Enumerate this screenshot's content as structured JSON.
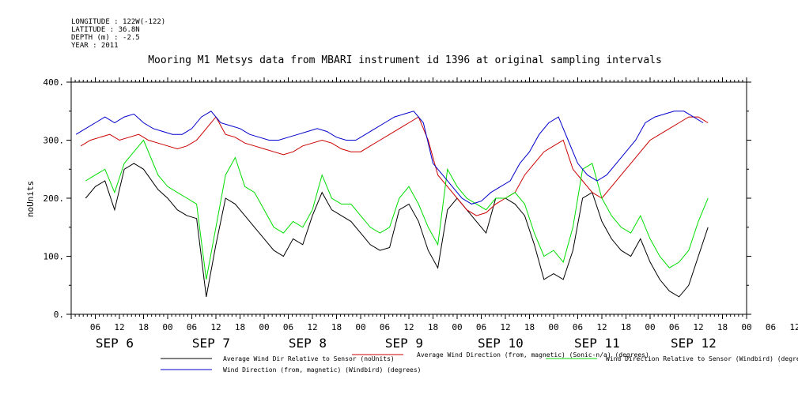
{
  "header": {
    "longitude": "LONGITUDE : 122W(-122)",
    "latitude": "LATITUDE : 36.8N",
    "depth": "DEPTH (m) : -2.5",
    "year": "YEAR : 2011"
  },
  "chart_data": {
    "type": "line",
    "title": "Mooring M1 Metsys data from MBARI instrument id 1396 at original sampling intervals",
    "ylabel": "noUnits",
    "xlabel": "",
    "ylim": [
      0,
      400
    ],
    "xlim": [
      0,
      7
    ],
    "yticks": [
      0,
      100,
      200,
      300,
      400
    ],
    "y_tick_labels": [
      "0.",
      "100.",
      "200.",
      "300.",
      "400."
    ],
    "hour_tick_labels": [
      "06",
      "12",
      "18",
      "00",
      "06",
      "12",
      "18",
      "00",
      "06",
      "12",
      "18",
      "00",
      "06",
      "12",
      "18",
      "00",
      "06",
      "12",
      "18",
      "00",
      "06",
      "12",
      "18",
      "00",
      "06",
      "12",
      "18",
      "00",
      "06",
      "12"
    ],
    "day_labels": [
      "SEP  6",
      "SEP  7",
      "SEP  8",
      "SEP  9",
      "SEP 10",
      "SEP 11",
      "SEP 12"
    ],
    "grid": false,
    "x_unit_note": "x values are days elapsed since 2011-09-06 00:00 (0 = 00h Sep 6)",
    "legend": {
      "placement": "bottom"
    },
    "series": [
      {
        "name": "Average Wind Dir Relative to Sensor (noUnits)",
        "color": "#000000",
        "x": [
          0.15,
          0.25,
          0.35,
          0.45,
          0.55,
          0.65,
          0.75,
          0.9,
          1.0,
          1.1,
          1.2,
          1.3,
          1.4,
          1.5,
          1.6,
          1.7,
          1.8,
          1.9,
          2.0,
          2.1,
          2.2,
          2.3,
          2.4,
          2.5,
          2.6,
          2.7,
          2.8,
          2.9,
          3.0,
          3.1,
          3.2,
          3.3,
          3.4,
          3.5,
          3.6,
          3.7,
          3.8,
          3.9,
          4.0,
          4.1,
          4.2,
          4.3,
          4.4,
          4.5,
          4.6,
          4.7,
          4.8,
          4.9,
          5.0,
          5.1,
          5.2,
          5.3,
          5.4,
          5.5,
          5.6,
          5.7,
          5.8,
          5.9,
          6.0,
          6.1,
          6.2,
          6.3,
          6.4,
          6.5,
          6.6
        ],
        "y": [
          200,
          220,
          230,
          180,
          250,
          260,
          250,
          215,
          200,
          180,
          170,
          165,
          30,
          120,
          200,
          190,
          170,
          150,
          130,
          110,
          100,
          130,
          120,
          170,
          210,
          180,
          170,
          160,
          140,
          120,
          110,
          115,
          180,
          190,
          160,
          110,
          80,
          180,
          200,
          180,
          160,
          140,
          200,
          200,
          190,
          170,
          120,
          60,
          70,
          60,
          110,
          200,
          210,
          160,
          130,
          110,
          100,
          130,
          90,
          60,
          40,
          30,
          50,
          100,
          150
        ]
      },
      {
        "name": "Average Wind Direction (from, magnetic) (Sonic-n/a) (degrees)",
        "color": "#cc0000",
        "x": [
          0.1,
          0.2,
          0.3,
          0.4,
          0.5,
          0.6,
          0.7,
          0.8,
          0.9,
          1.0,
          1.1,
          1.2,
          1.3,
          1.4,
          1.5,
          1.6,
          1.7,
          1.8,
          1.9,
          2.0,
          2.1,
          2.2,
          2.3,
          2.4,
          2.5,
          2.6,
          2.7,
          2.8,
          2.9,
          3.0,
          3.1,
          3.2,
          3.3,
          3.4,
          3.5,
          3.6,
          3.7,
          3.8,
          3.9,
          4.0,
          4.1,
          4.2,
          4.3,
          4.4,
          4.5,
          4.6,
          4.7,
          4.8,
          4.9,
          5.0,
          5.1,
          5.2,
          5.3,
          5.4,
          5.5,
          5.6,
          5.7,
          5.8,
          5.9,
          6.0,
          6.1,
          6.2,
          6.3,
          6.4,
          6.5,
          6.6
        ],
        "y": [
          290,
          300,
          305,
          310,
          300,
          305,
          310,
          300,
          295,
          290,
          285,
          290,
          300,
          320,
          340,
          310,
          305,
          295,
          290,
          285,
          280,
          275,
          280,
          290,
          295,
          300,
          295,
          285,
          280,
          280,
          290,
          300,
          310,
          320,
          330,
          340,
          300,
          240,
          220,
          200,
          180,
          170,
          175,
          190,
          200,
          210,
          240,
          260,
          280,
          290,
          300,
          250,
          230,
          210,
          200,
          220,
          240,
          260,
          280,
          300,
          310,
          320,
          330,
          340,
          340,
          330
        ]
      },
      {
        "name": "Wind Direction Relative to Sensor (Windbird) (degrees)",
        "color": "#00dd00",
        "x": [
          0.15,
          0.25,
          0.35,
          0.45,
          0.55,
          0.65,
          0.75,
          0.9,
          1.0,
          1.1,
          1.2,
          1.3,
          1.4,
          1.5,
          1.6,
          1.7,
          1.8,
          1.9,
          2.0,
          2.1,
          2.2,
          2.3,
          2.4,
          2.5,
          2.6,
          2.7,
          2.8,
          2.9,
          3.0,
          3.1,
          3.2,
          3.3,
          3.4,
          3.5,
          3.6,
          3.7,
          3.8,
          3.9,
          4.0,
          4.1,
          4.2,
          4.3,
          4.4,
          4.5,
          4.6,
          4.7,
          4.8,
          4.9,
          5.0,
          5.1,
          5.2,
          5.3,
          5.4,
          5.5,
          5.6,
          5.7,
          5.8,
          5.9,
          6.0,
          6.1,
          6.2,
          6.3,
          6.4,
          6.5,
          6.6
        ],
        "y": [
          230,
          240,
          250,
          210,
          260,
          280,
          300,
          240,
          220,
          210,
          200,
          190,
          60,
          150,
          240,
          270,
          220,
          210,
          180,
          150,
          140,
          160,
          150,
          180,
          240,
          200,
          190,
          190,
          170,
          150,
          140,
          150,
          200,
          220,
          190,
          150,
          120,
          250,
          220,
          200,
          190,
          180,
          200,
          200,
          210,
          190,
          140,
          100,
          110,
          90,
          150,
          250,
          260,
          200,
          170,
          150,
          140,
          170,
          130,
          100,
          80,
          90,
          110,
          160,
          200
        ]
      },
      {
        "name": "Wind Direction (from, magnetic) (Windbird) (degrees)",
        "color": "#0000cc",
        "x": [
          0.05,
          0.15,
          0.25,
          0.35,
          0.45,
          0.55,
          0.65,
          0.75,
          0.85,
          0.95,
          1.05,
          1.15,
          1.25,
          1.35,
          1.45,
          1.55,
          1.65,
          1.75,
          1.85,
          1.95,
          2.05,
          2.15,
          2.25,
          2.35,
          2.45,
          2.55,
          2.65,
          2.75,
          2.85,
          2.95,
          3.05,
          3.15,
          3.25,
          3.35,
          3.45,
          3.55,
          3.65,
          3.75,
          3.85,
          3.95,
          4.05,
          4.15,
          4.25,
          4.35,
          4.45,
          4.55,
          4.65,
          4.75,
          4.85,
          4.95,
          5.05,
          5.15,
          5.25,
          5.35,
          5.45,
          5.55,
          5.65,
          5.75,
          5.85,
          5.95,
          6.05,
          6.15,
          6.25,
          6.35,
          6.45,
          6.55
        ],
        "y": [
          310,
          320,
          330,
          340,
          330,
          340,
          345,
          330,
          320,
          315,
          310,
          310,
          320,
          340,
          350,
          330,
          325,
          320,
          310,
          305,
          300,
          300,
          305,
          310,
          315,
          320,
          315,
          305,
          300,
          300,
          310,
          320,
          330,
          340,
          345,
          350,
          330,
          260,
          240,
          220,
          200,
          190,
          195,
          210,
          220,
          230,
          260,
          280,
          310,
          330,
          340,
          300,
          260,
          240,
          230,
          240,
          260,
          280,
          300,
          330,
          340,
          345,
          350,
          350,
          340,
          330
        ]
      }
    ]
  }
}
